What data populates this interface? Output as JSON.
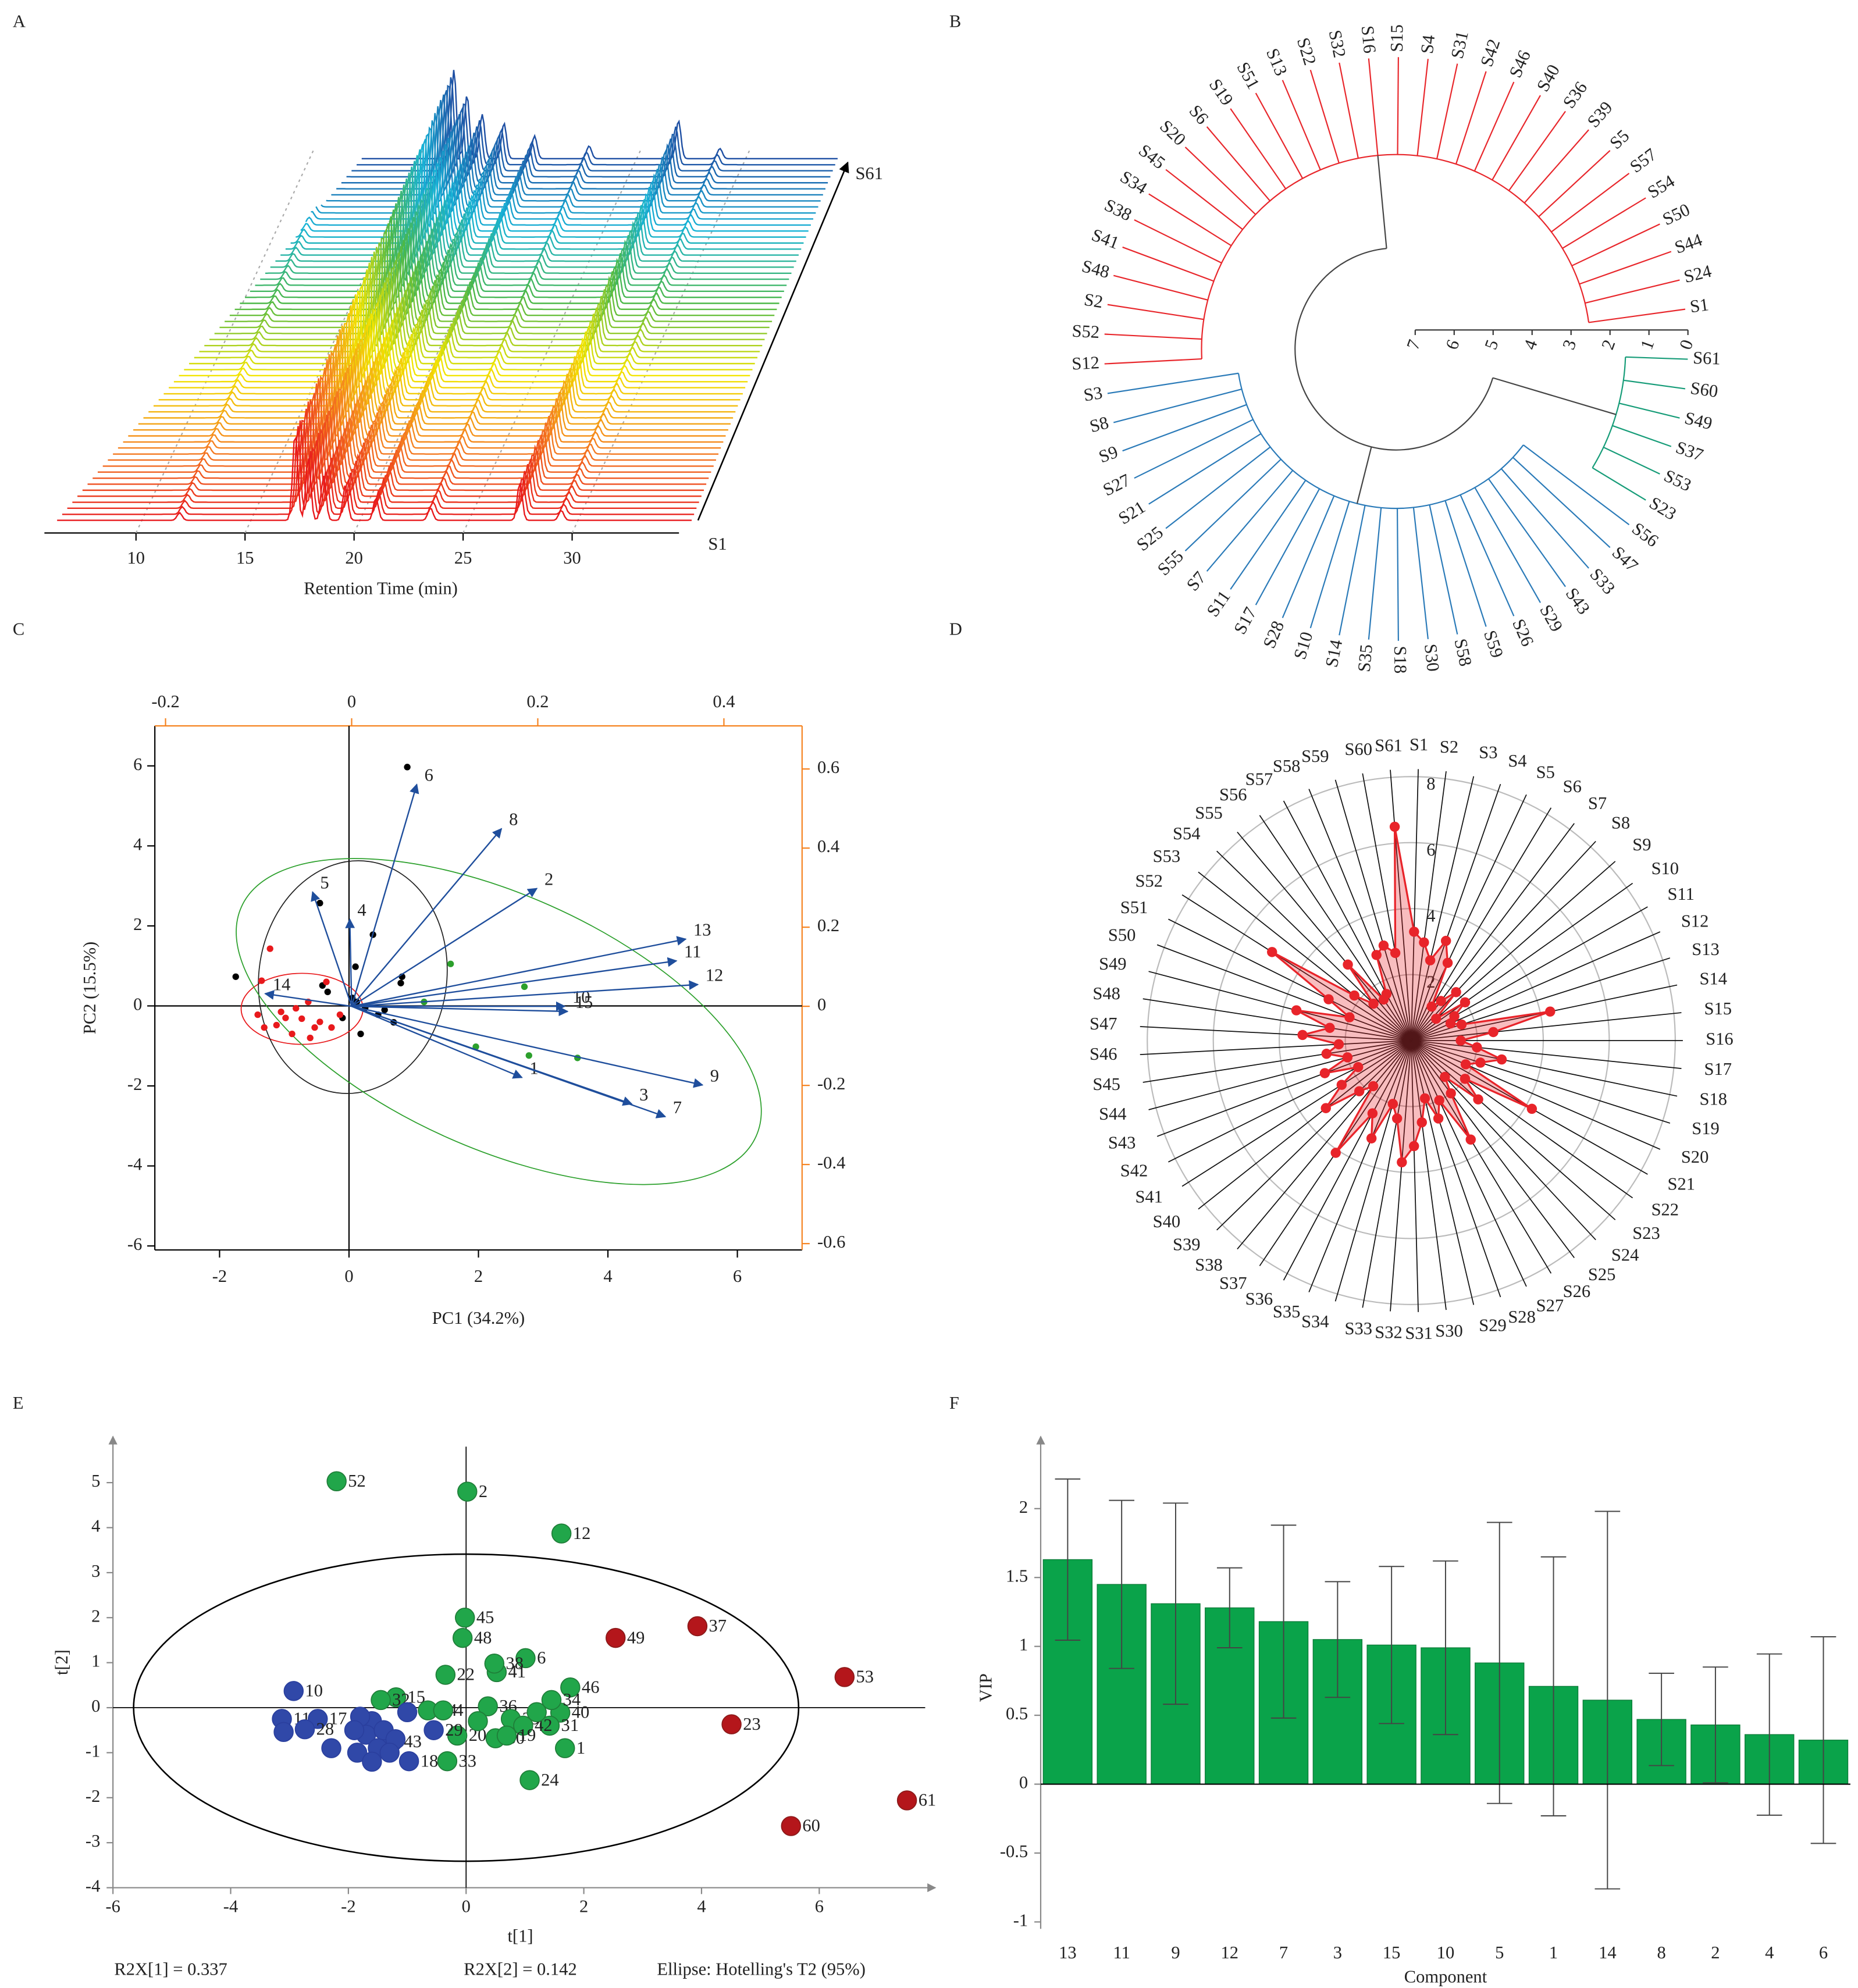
{
  "chart_data": [
    {
      "type": "waterfall",
      "panel": "A",
      "xlabel": "Retention Time (min)",
      "xlim": [
        5.8,
        34.9
      ],
      "xticks": [
        10,
        15,
        20,
        25,
        30
      ],
      "first_label": "S1",
      "last_label": "S61",
      "traces": 61,
      "colors": [
        "#e8191c",
        "#f58220",
        "#f2e500",
        "#4cb848",
        "#17b3d6",
        "#1e4fa3"
      ],
      "peaks": [
        {
          "time": 12.0,
          "height": 6
        },
        {
          "time": 17.3,
          "height": 70
        },
        {
          "time": 17.9,
          "height": 50
        },
        {
          "time": 18.6,
          "height": 35
        },
        {
          "time": 19.6,
          "height": 28
        },
        {
          "time": 21.0,
          "height": 18
        },
        {
          "time": 23.5,
          "height": 10
        },
        {
          "time": 27.6,
          "height": 30
        },
        {
          "time": 29.5,
          "height": 8
        }
      ]
    },
    {
      "type": "dendrogram",
      "panel": "B",
      "scale_ticks": [
        0,
        1,
        2,
        3,
        4,
        5,
        6,
        7
      ],
      "root_height": 4.9,
      "clusters": [
        {
          "color": "#169c78",
          "height": 1.6,
          "leaves": [
            "S61",
            "S60",
            "S49",
            "S37",
            "S53",
            "S23"
          ]
        },
        {
          "color": "#2a7ab8",
          "height": 3.4,
          "leaves": [
            "S56",
            "S47",
            "S33",
            "S43",
            "S29",
            "S26",
            "S59",
            "S58",
            "S30",
            "S18",
            "S35",
            "S14",
            "S10",
            "S28",
            "S17",
            "S11",
            "S7",
            "S55",
            "S25",
            "S21",
            "S27",
            "S9",
            "S8",
            "S3"
          ]
        },
        {
          "color": "#e8262b",
          "height": 2.5,
          "leaves": [
            "S12",
            "S52",
            "S2",
            "S48",
            "S41",
            "S38",
            "S34",
            "S45",
            "S20",
            "S6",
            "S19",
            "S51",
            "S13",
            "S22",
            "S32",
            "S16",
            "S15",
            "S4",
            "S31",
            "S42",
            "S46",
            "S40",
            "S36",
            "S39",
            "S5",
            "S57",
            "S54",
            "S50",
            "S44",
            "S24",
            "S1"
          ]
        }
      ]
    },
    {
      "type": "biplot",
      "panel": "C",
      "xlabel": "PC1 (34.2%)",
      "ylabel": "PC2 (15.5%)",
      "xlim": [
        -3,
        7
      ],
      "xticks": [
        -2,
        0,
        2,
        4,
        6
      ],
      "ylim": [
        -6.1,
        7
      ],
      "yticks": [
        -6,
        -4,
        -2,
        0,
        2,
        4,
        6
      ],
      "x2lim": [
        -0.2115,
        0.484
      ],
      "x2ticks": [
        -0.2,
        0,
        0.2,
        0.4
      ],
      "y2lim": [
        -0.616,
        0.709
      ],
      "y2ticks": [
        -0.6,
        -0.4,
        -0.2,
        0,
        0.2,
        0.4,
        0.6
      ],
      "axis2_color": "#f5821f",
      "loadings": {
        "color": "#1f4e9c",
        "labels": [
          "1",
          "2",
          "3",
          "4",
          "5",
          "6",
          "7",
          "8",
          "9",
          "10",
          "11",
          "12",
          "13",
          "14",
          "15"
        ],
        "x": [
          0.183,
          0.199,
          0.301,
          -0.002,
          -0.042,
          0.07,
          0.337,
          0.161,
          0.377,
          0.229,
          0.349,
          0.372,
          0.359,
          -0.093,
          0.232
        ],
        "y": [
          -0.18,
          0.298,
          -0.247,
          0.22,
          0.289,
          0.561,
          -0.279,
          0.449,
          -0.199,
          0.0,
          0.115,
          0.055,
          0.17,
          0.032,
          -0.013
        ]
      },
      "series": [
        {
          "color": "#000000",
          "x": [
            0.9,
            -0.45,
            -1.75,
            0.82,
            0.8,
            0.37,
            0.1,
            0.12,
            -0.33,
            0.45,
            0.69,
            0.18,
            -0.41,
            0.25,
            -0.1,
            0.55,
            0.05
          ],
          "y": [
            5.97,
            2.57,
            0.73,
            0.73,
            0.57,
            1.78,
            0.98,
            0.1,
            0.35,
            -0.22,
            -0.41,
            -0.7,
            0.51,
            -0.05,
            -0.3,
            -0.1,
            0.2
          ]
        },
        {
          "color": "#e8191c",
          "x": [
            -1.22,
            -1.35,
            -1.41,
            -1.12,
            -0.73,
            -0.88,
            -0.53,
            -0.27,
            -0.14,
            -1.31,
            -0.63,
            -0.82,
            -0.98,
            -0.45,
            -0.6,
            -1.05,
            -0.35
          ],
          "y": [
            1.43,
            0.63,
            -0.22,
            -0.48,
            -0.32,
            -0.7,
            -0.54,
            -0.54,
            -0.22,
            -0.54,
            0.1,
            -0.06,
            -0.3,
            -0.4,
            -0.8,
            -0.15,
            0.6
          ]
        },
        {
          "color": "#2ca02c",
          "x": [
            1.57,
            1.16,
            2.71,
            1.96,
            2.78,
            3.53
          ],
          "y": [
            1.05,
            0.1,
            0.48,
            -1.02,
            -1.24,
            -1.3
          ]
        }
      ]
    },
    {
      "type": "radar",
      "panel": "D",
      "color": "#e8242a",
      "rlim": [
        0,
        8
      ],
      "rticks": [
        2,
        4,
        6,
        8
      ],
      "categories": [
        "S1",
        "S2",
        "S3",
        "S4",
        "S5",
        "S6",
        "S7",
        "S8",
        "S9",
        "S10",
        "S11",
        "S12",
        "S13",
        "S14",
        "S15",
        "S16",
        "S17",
        "S18",
        "S19",
        "S20",
        "S21",
        "S22",
        "S23",
        "S24",
        "S25",
        "S26",
        "S27",
        "S28",
        "S29",
        "S30",
        "S31",
        "S32",
        "S33",
        "S34",
        "S35",
        "S36",
        "S37",
        "S38",
        "S39",
        "S40",
        "S41",
        "S42",
        "S43",
        "S44",
        "S45",
        "S46",
        "S47",
        "S48",
        "S49",
        "S50",
        "S51",
        "S52",
        "S53",
        "S54",
        "S55",
        "S56",
        "S57",
        "S58",
        "S59",
        "S60",
        "S61"
      ],
      "values": [
        3.3,
        3.0,
        2.5,
        3.2,
        2.6,
        1.2,
        1.5,
        2.0,
        1.0,
        2.0,
        1.5,
        1.3,
        1.6,
        4.3,
        2.5,
        1.5,
        2.0,
        2.8,
        2.2,
        1.8,
        4.2,
        2.0,
        2.7,
        1.5,
        2.0,
        3.5,
        2.0,
        2.5,
        1.8,
        2.5,
        3.2,
        3.7,
        2.4,
        2.0,
        3.2,
        2.5,
        4.1,
        1.8,
        2.2,
        3.3,
        2.5,
        1.8,
        2.8,
        2.0,
        2.6,
        2.2,
        3.3,
        2.5,
        3.6,
        2.0,
        2.8,
        5.0,
        2.2,
        1.6,
        3.0,
        1.5,
        1.6,
        2.8,
        3.0,
        2.7,
        6.5
      ]
    },
    {
      "type": "scatter",
      "panel": "E",
      "xlabel": "t[1]",
      "ylabel": "t[2]",
      "xlim": [
        -6,
        7.8
      ],
      "xticks": [
        -6,
        -4,
        -2,
        0,
        2,
        4,
        6
      ],
      "ylim": [
        -4,
        5.8
      ],
      "yticks": [
        -4,
        -3,
        -2,
        -1,
        0,
        1,
        2,
        3,
        4,
        5
      ],
      "notes": [
        "R2X[1] = 0.337",
        "R2X[2] = 0.142",
        "Ellipse: Hotelling's T2 (95%)"
      ],
      "series": [
        {
          "color": "#21a64a",
          "label_color": "#1f7d38",
          "labels": [
            "52",
            "2",
            "12",
            "45",
            "48",
            "22",
            "6",
            "41",
            "38",
            "46",
            "40",
            "34",
            "31",
            "1",
            "24",
            "33",
            "36",
            "39",
            "42",
            "30",
            "15",
            "32",
            "14",
            "4",
            "20",
            "19",
            null,
            null
          ],
          "x": [
            -2.2,
            0.02,
            1.62,
            -0.02,
            -0.06,
            -0.35,
            1.01,
            0.52,
            0.48,
            1.77,
            1.6,
            1.45,
            1.42,
            1.68,
            1.08,
            -0.32,
            0.37,
            0.76,
            0.97,
            0.5,
            -1.19,
            -1.45,
            -0.65,
            -0.39,
            -0.15,
            0.69,
            0.2,
            1.2
          ],
          "y": [
            5.03,
            4.8,
            3.87,
            2.0,
            1.55,
            0.73,
            1.1,
            0.79,
            0.98,
            0.45,
            -0.11,
            0.17,
            -0.4,
            -0.9,
            -1.61,
            -1.19,
            0.03,
            -0.25,
            -0.4,
            -0.68,
            0.23,
            0.17,
            -0.06,
            -0.06,
            -0.62,
            -0.62,
            -0.3,
            -0.1
          ]
        },
        {
          "color": "#3048a8",
          "label_color": "#2a3f9e",
          "labels": [
            "10",
            "11",
            "17",
            "28",
            null,
            null,
            "43",
            "18",
            "29",
            null,
            null,
            null,
            null,
            null,
            null,
            null,
            null,
            null,
            null,
            null
          ],
          "x": [
            -2.93,
            -3.13,
            -2.52,
            -2.74,
            -3.1,
            -2.29,
            -1.25,
            -0.97,
            -0.55,
            -1.6,
            -1.7,
            -1.5,
            -1.4,
            -1.2,
            -1.85,
            -1.6,
            -1.3,
            -1.0,
            -1.8,
            -1.9
          ],
          "y": [
            0.37,
            -0.25,
            -0.25,
            -0.48,
            -0.54,
            -0.9,
            -0.76,
            -1.19,
            -0.5,
            -0.3,
            -0.6,
            -0.9,
            -0.5,
            -0.7,
            -1.0,
            -1.2,
            -1.0,
            -0.1,
            -0.2,
            -0.5
          ]
        },
        {
          "color": "#b4161b",
          "label_color": "#8b1a1a",
          "labels": [
            "49",
            "37",
            "53",
            "23",
            "60",
            "61"
          ],
          "x": [
            2.54,
            3.93,
            6.43,
            4.51,
            5.52,
            7.49
          ],
          "y": [
            1.55,
            1.81,
            0.68,
            -0.37,
            -2.63,
            -2.06
          ]
        }
      ]
    },
    {
      "type": "bar",
      "panel": "F",
      "xlabel": "Component",
      "ylabel": "VIP",
      "color": "#0aa34a",
      "categories": [
        "13",
        "11",
        "9",
        "12",
        "7",
        "3",
        "15",
        "10",
        "5",
        "1",
        "14",
        "8",
        "2",
        "4",
        "6"
      ],
      "values": [
        1.63,
        1.45,
        1.31,
        1.28,
        1.18,
        1.05,
        1.01,
        0.99,
        0.88,
        0.71,
        0.61,
        0.47,
        0.43,
        0.36,
        0.32
      ],
      "errors": [
        0.585,
        0.61,
        0.73,
        0.29,
        0.7,
        0.42,
        0.57,
        0.63,
        1.02,
        0.94,
        1.37,
        0.335,
        0.42,
        0.585,
        0.75
      ],
      "ylim": [
        -1.05,
        2.45
      ],
      "yticks": [
        -1,
        -0.5,
        0,
        0.5,
        1,
        1.5,
        2
      ]
    }
  ]
}
